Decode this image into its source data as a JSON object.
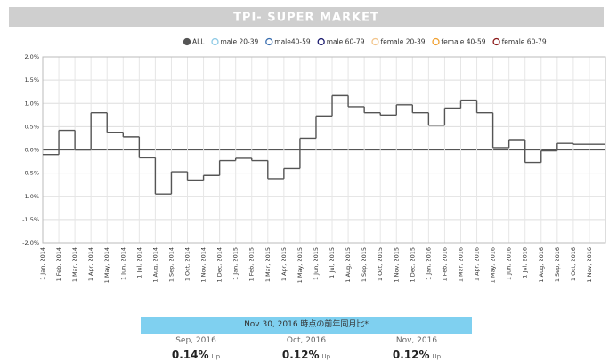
{
  "chart_data": {
    "type": "step-line",
    "title": "TPI- SUPER MARKET",
    "categories": [
      "1 Jan, 2014",
      "1 Feb, 2014",
      "1 Mar, 2014",
      "1 Apr, 2014",
      "1 May, 2014",
      "1 Jun, 2014",
      "1 Jul, 2014",
      "1 Aug, 2014",
      "1 Sep, 2014",
      "1 Oct, 2014",
      "1 Nov, 2014",
      "1 Dec, 2014",
      "1 Jan, 2015",
      "1 Feb, 2015",
      "1 Mar, 2015",
      "1 Apr, 2015",
      "1 May, 2015",
      "1 Jun, 2015",
      "1 Jul, 2015",
      "1 Aug, 2015",
      "1 Sep, 2015",
      "1 Oct, 2015",
      "1 Nov, 2015",
      "1 Dec, 2015",
      "1 Jan, 2016",
      "1 Feb, 2016",
      "1 Mar, 2016",
      "1 Apr, 2016",
      "1 May, 2016",
      "1 Jun, 2016",
      "1 Jul, 2016",
      "1 Aug, 2016",
      "1 Sep, 2016",
      "1 Oct, 2016",
      "1 Nov, 2016"
    ],
    "series": [
      {
        "name": "ALL",
        "color": "#555555",
        "values": [
          -0.1,
          0.42,
          0.0,
          0.8,
          0.38,
          0.28,
          -0.17,
          -0.95,
          -0.47,
          -0.65,
          -0.55,
          -0.23,
          -0.18,
          -0.23,
          -0.62,
          -0.4,
          0.25,
          0.73,
          1.17,
          0.93,
          0.8,
          0.75,
          0.97,
          0.8,
          0.53,
          0.9,
          1.07,
          0.8,
          0.05,
          0.22,
          -0.27,
          -0.02,
          0.14,
          0.12,
          0.12
        ]
      }
    ],
    "other_series": [
      {
        "name": "male 20-39",
        "color": "#8ecae6"
      },
      {
        "name": "male40-59",
        "color": "#3a6fb0"
      },
      {
        "name": "male 60-79",
        "color": "#1a1a6e"
      },
      {
        "name": "female 20-39",
        "color": "#f2c58c"
      },
      {
        "name": "female 40-59",
        "color": "#f0a030"
      },
      {
        "name": "female 60-79",
        "color": "#8b1a1a"
      }
    ],
    "ylim": [
      -2.0,
      2.0
    ],
    "yticks": [
      {
        "value": -2.0,
        "label": "-2.0%"
      },
      {
        "value": -1.5,
        "label": "-1.5%"
      },
      {
        "value": -1.0,
        "label": "-1.0%"
      },
      {
        "value": -0.5,
        "label": "-0.5%"
      },
      {
        "value": 0,
        "label": "0.0%"
      },
      {
        "value": 0.5,
        "label": "0.5%"
      },
      {
        "value": 1.0,
        "label": "1.0%"
      },
      {
        "value": 1.5,
        "label": "1.5%"
      },
      {
        "value": 2.0,
        "label": "2.0%"
      }
    ],
    "grid": true
  },
  "table": {
    "title": "Nov 30, 2016 時点の前年同月比*",
    "columns": [
      "Sep, 2016",
      "Oct, 2016",
      "Nov, 2016"
    ],
    "values": [
      "0.14%",
      "0.12%",
      "0.12%"
    ],
    "status": [
      "Up",
      "Up",
      "Up"
    ]
  }
}
